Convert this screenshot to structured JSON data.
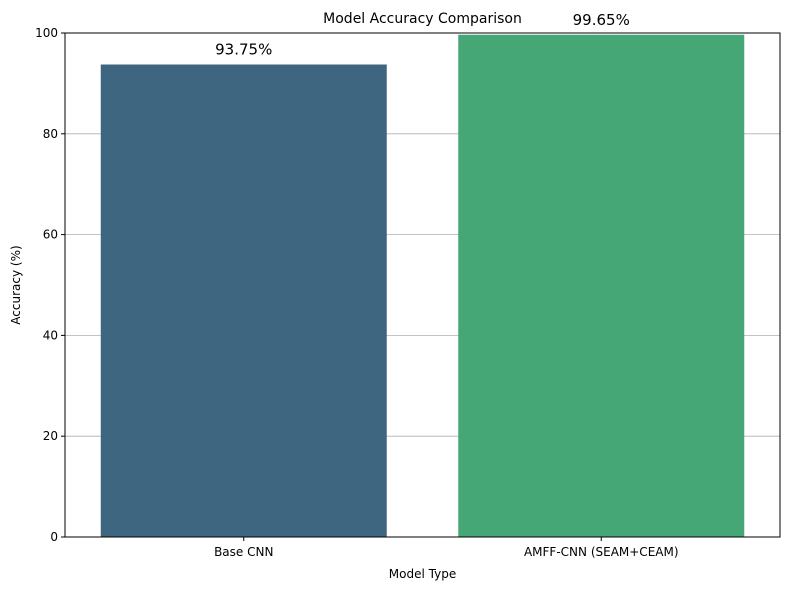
{
  "chart_data": {
    "type": "bar",
    "title": "Model Accuracy Comparison",
    "xlabel": "Model Type",
    "ylabel": "Accuracy (%)",
    "categories": [
      "Base CNN",
      "AMFF-CNN (SEAM+CEAM)"
    ],
    "values": [
      93.75,
      99.65
    ],
    "data_labels": [
      "93.75%",
      "99.65%"
    ],
    "colors": [
      "#3e6680",
      "#44a775"
    ],
    "ylim": [
      0,
      100
    ],
    "yticks": [
      0,
      20,
      40,
      60,
      80,
      100
    ],
    "grid": "y"
  }
}
